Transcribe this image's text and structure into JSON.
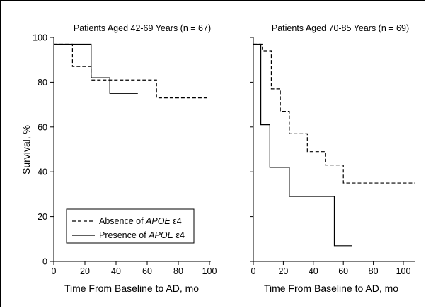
{
  "chart_data": [
    {
      "type": "line",
      "title": "Patients Aged 42-69 Years (n = 67)",
      "xlabel": "Time From Baseline to AD, mo",
      "ylabel": "Survival, %",
      "xlim": [
        0,
        100
      ],
      "ylim": [
        0,
        100
      ],
      "xticks": [
        0,
        20,
        40,
        60,
        80,
        100
      ],
      "yticks": [
        0,
        20,
        40,
        60,
        80,
        100
      ],
      "grid": false,
      "step": true,
      "series": [
        {
          "name": "Absence of APOE ε4",
          "style": "dashed",
          "x": [
            0,
            12,
            24,
            66,
            100
          ],
          "y": [
            97,
            87,
            81,
            73,
            73
          ]
        },
        {
          "name": "Presence of APOE ε4",
          "style": "solid",
          "x": [
            0,
            24,
            36,
            54
          ],
          "y": [
            97,
            82,
            75,
            75
          ]
        }
      ],
      "legend": {
        "placement": "bottom-left",
        "entries": [
          {
            "style": "dashed",
            "prefix": "Absence of ",
            "emph": "APOE",
            "suffix": " ε4"
          },
          {
            "style": "solid",
            "prefix": "Presence of ",
            "emph": "APOE",
            "suffix": " ε4"
          }
        ]
      }
    },
    {
      "type": "line",
      "title": "Patients Aged 70-85 Years (n = 69)",
      "xlabel": "Time From Baseline to AD, mo",
      "ylabel": "",
      "xlim": [
        0,
        100
      ],
      "ylim": [
        0,
        100
      ],
      "xticks": [
        0,
        20,
        40,
        60,
        80,
        100
      ],
      "yticks": [
        0,
        20,
        40,
        60,
        80,
        100
      ],
      "grid": false,
      "step": true,
      "series": [
        {
          "name": "Absence of APOE ε4",
          "style": "dashed",
          "x": [
            0,
            6,
            12,
            18,
            24,
            36,
            48,
            60,
            108
          ],
          "y": [
            97,
            94,
            77,
            67,
            57,
            49,
            43,
            35,
            35
          ]
        },
        {
          "name": "Presence of APOE ε4",
          "style": "solid",
          "x": [
            0,
            5,
            11,
            24,
            54,
            66
          ],
          "y": [
            97,
            61,
            42,
            29,
            7,
            7
          ]
        }
      ]
    }
  ]
}
